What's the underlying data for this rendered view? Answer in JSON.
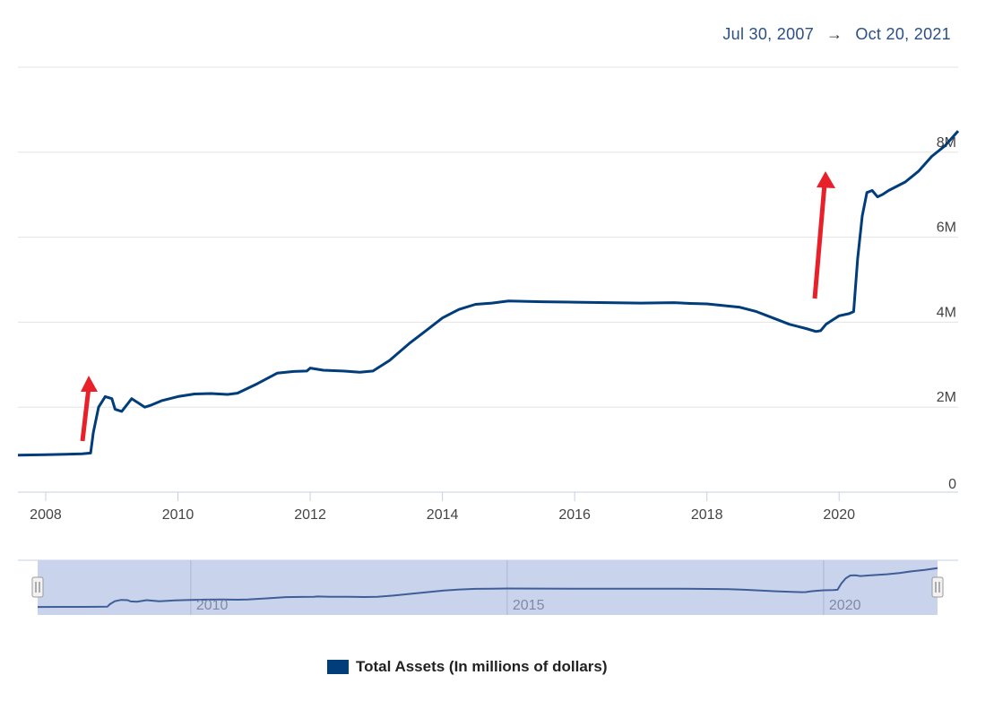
{
  "range": {
    "start": "Jul 30, 2007",
    "arrow": "→",
    "end": "Oct 20, 2021"
  },
  "legend": {
    "label": "Total Assets (In millions of dollars)"
  },
  "colors": {
    "line": "#003d7a",
    "arrow": "#e8202a",
    "navigator_fill": "#c9d4ec",
    "navigator_line": "#3f5e98"
  },
  "chart_data": {
    "type": "line",
    "x_axis": {
      "ticks": [
        "2008",
        "2010",
        "2012",
        "2014",
        "2016",
        "2018",
        "2020"
      ],
      "range": [
        2007.58,
        2021.8
      ]
    },
    "y_axis": {
      "ticks": [
        "0",
        "2M",
        "4M",
        "6M",
        "8M"
      ],
      "tick_values": [
        0,
        2000000,
        4000000,
        6000000,
        8000000
      ],
      "range": [
        0,
        10000000
      ]
    },
    "grid": true,
    "navigator": {
      "ticks": [
        "2010",
        "2015",
        "2020"
      ]
    },
    "annotations": [
      "arrow-up-2008",
      "arrow-up-2020"
    ],
    "series": [
      {
        "name": "Total Assets (In millions of dollars)",
        "x": [
          2007.58,
          2008.0,
          2008.3,
          2008.55,
          2008.68,
          2008.72,
          2008.8,
          2008.9,
          2009.0,
          2009.05,
          2009.15,
          2009.25,
          2009.3,
          2009.4,
          2009.5,
          2009.6,
          2009.75,
          2010.0,
          2010.25,
          2010.5,
          2010.75,
          2010.9,
          2011.2,
          2011.5,
          2011.75,
          2011.95,
          2012.0,
          2012.2,
          2012.5,
          2012.75,
          2012.95,
          2013.2,
          2013.5,
          2013.75,
          2014.0,
          2014.25,
          2014.5,
          2014.75,
          2015.0,
          2015.5,
          2016.0,
          2016.5,
          2017.0,
          2017.5,
          2017.75,
          2018.0,
          2018.5,
          2018.75,
          2019.0,
          2019.25,
          2019.5,
          2019.65,
          2019.72,
          2019.8,
          2019.9,
          2020.0,
          2020.15,
          2020.22,
          2020.28,
          2020.35,
          2020.42,
          2020.5,
          2020.58,
          2020.65,
          2020.75,
          2021.0,
          2021.2,
          2021.4,
          2021.6,
          2021.8
        ],
        "values": [
          870000,
          880000,
          890000,
          900000,
          920000,
          1400000,
          2000000,
          2250000,
          2200000,
          1950000,
          1900000,
          2100000,
          2200000,
          2100000,
          2000000,
          2050000,
          2150000,
          2250000,
          2310000,
          2320000,
          2300000,
          2330000,
          2550000,
          2800000,
          2840000,
          2850000,
          2920000,
          2870000,
          2850000,
          2820000,
          2850000,
          3100000,
          3500000,
          3800000,
          4100000,
          4300000,
          4420000,
          4450000,
          4500000,
          4480000,
          4470000,
          4460000,
          4450000,
          4460000,
          4440000,
          4430000,
          4350000,
          4250000,
          4100000,
          3950000,
          3850000,
          3780000,
          3800000,
          3950000,
          4050000,
          4150000,
          4200000,
          4250000,
          5500000,
          6500000,
          7050000,
          7100000,
          6950000,
          7000000,
          7100000,
          7300000,
          7550000,
          7900000,
          8150000,
          8500000
        ]
      }
    ]
  }
}
